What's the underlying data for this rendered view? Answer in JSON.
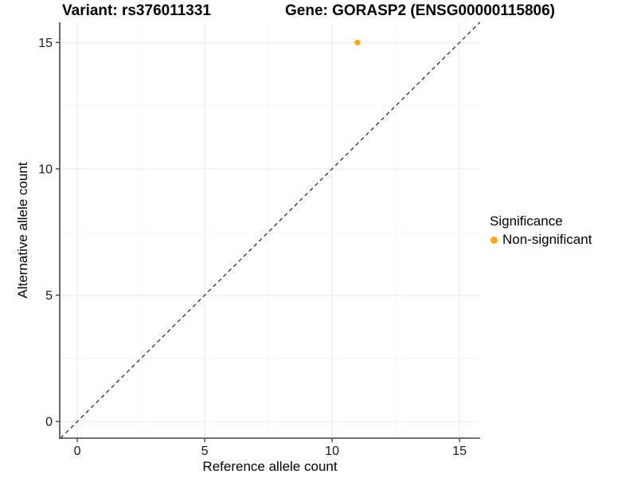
{
  "chart_data": {
    "type": "scatter",
    "titles": {
      "left": "Variant: rs376011331",
      "right": "Gene: GORASP2 (ENSG00000115806)"
    },
    "xlabel": "Reference allele count",
    "ylabel": "Alternative allele count",
    "x_ticks": [
      0,
      5,
      10,
      15
    ],
    "y_ticks": [
      0,
      5,
      10,
      15
    ],
    "xlim": [
      -0.69,
      15.81
    ],
    "ylim": [
      -0.66,
      15.8
    ],
    "grid": {
      "major": true,
      "minor": true
    },
    "points": [
      {
        "x": 11,
        "y": 15,
        "series": "Non-significant"
      }
    ],
    "identity_line": {
      "slope": 1,
      "intercept": 0,
      "style": "dashed"
    },
    "legend": {
      "title": "Significance",
      "position": "right",
      "items": [
        {
          "label": "Non-significant",
          "color": "#FFA500"
        }
      ]
    },
    "colors": {
      "point": "#FFA500",
      "axis": "#454545",
      "tick_label": "#1a1a1a",
      "grid_major": "#EBEBEB",
      "grid_minor": "#F4F4F4",
      "identity_line": "#111111",
      "background": "#FFFFFF"
    }
  }
}
